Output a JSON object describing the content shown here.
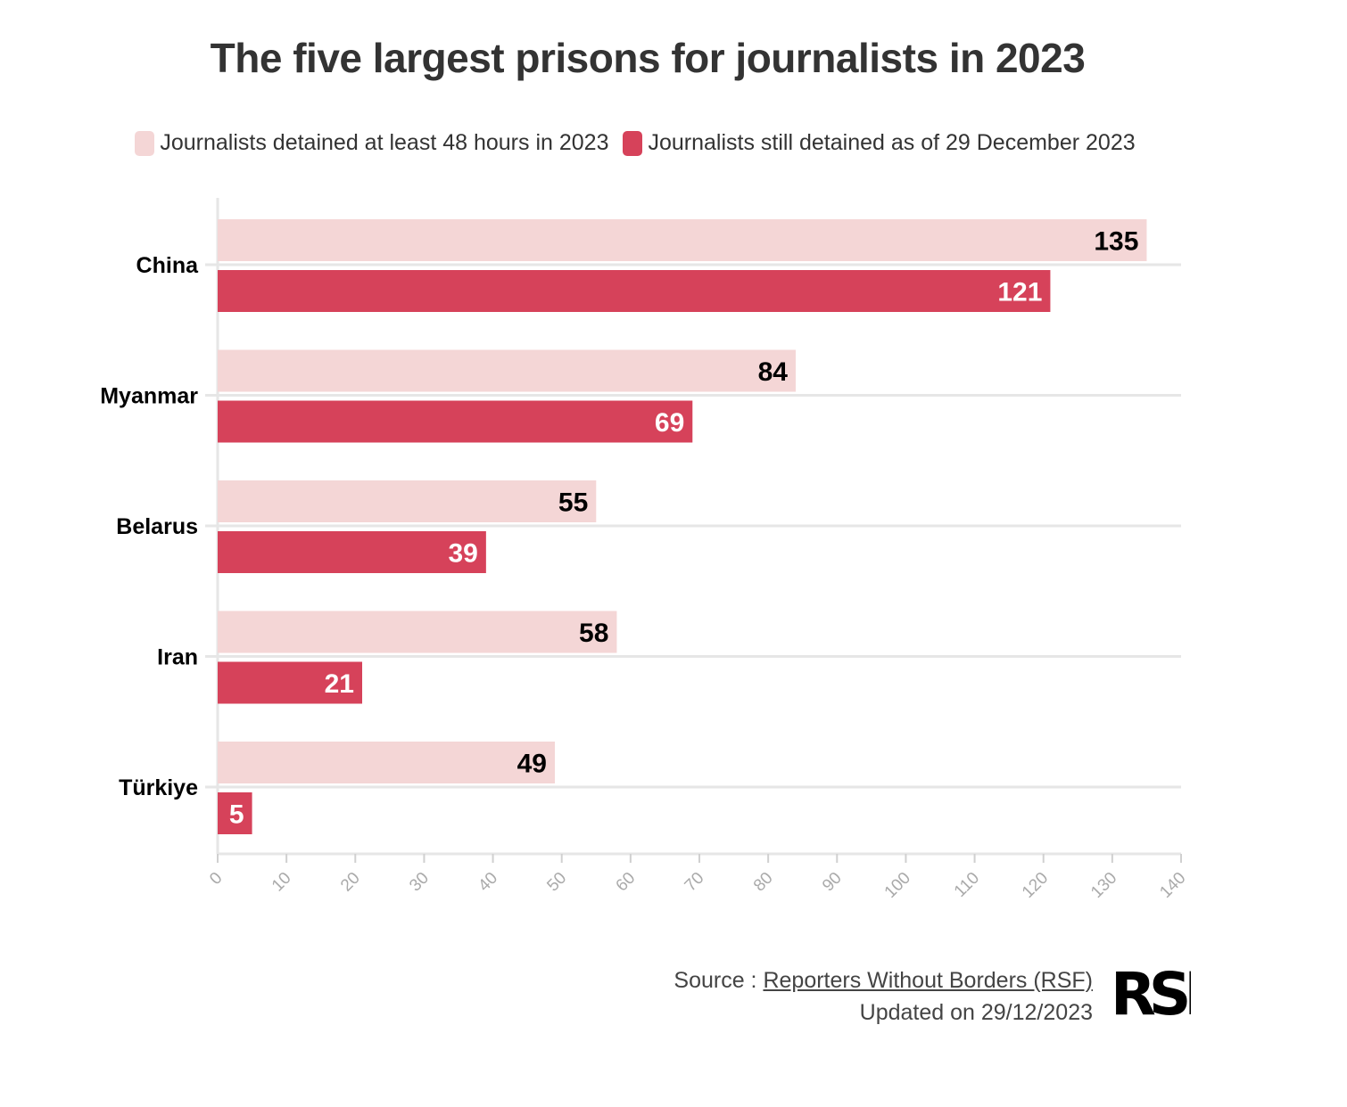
{
  "title": "The five largest prisons for journalists in 2023",
  "legend": [
    {
      "label": "Journalists detained at least 48 hours in 2023",
      "color": "#f4d6d6"
    },
    {
      "label": "Journalists still detained as of 29 December 2023",
      "color": "#d6425a"
    }
  ],
  "chart_data": {
    "type": "bar",
    "orientation": "horizontal",
    "title": "The five largest prisons for journalists in 2023",
    "categories": [
      "China",
      "Myanmar",
      "Belarus",
      "Iran",
      "Türkiye"
    ],
    "series": [
      {
        "name": "Journalists detained at least 48 hours in 2023",
        "values": [
          135,
          84,
          55,
          58,
          49
        ],
        "color": "#f4d6d6",
        "label_color": "#000000"
      },
      {
        "name": "Journalists still detained as of 29 December 2023",
        "values": [
          121,
          69,
          39,
          21,
          5
        ],
        "color": "#d6425a",
        "label_color": "#ffffff"
      }
    ],
    "xlim": [
      0,
      140
    ],
    "xticks": [
      0,
      10,
      20,
      30,
      40,
      50,
      60,
      70,
      80,
      90,
      100,
      110,
      120,
      130,
      140
    ],
    "grid": true,
    "legend_position": "top"
  },
  "footer": {
    "source_prefix": "Source : ",
    "source_link": "Reporters Without Borders (RSF)",
    "updated": "Updated on 29/12/2023",
    "logo_text": "RSF"
  }
}
